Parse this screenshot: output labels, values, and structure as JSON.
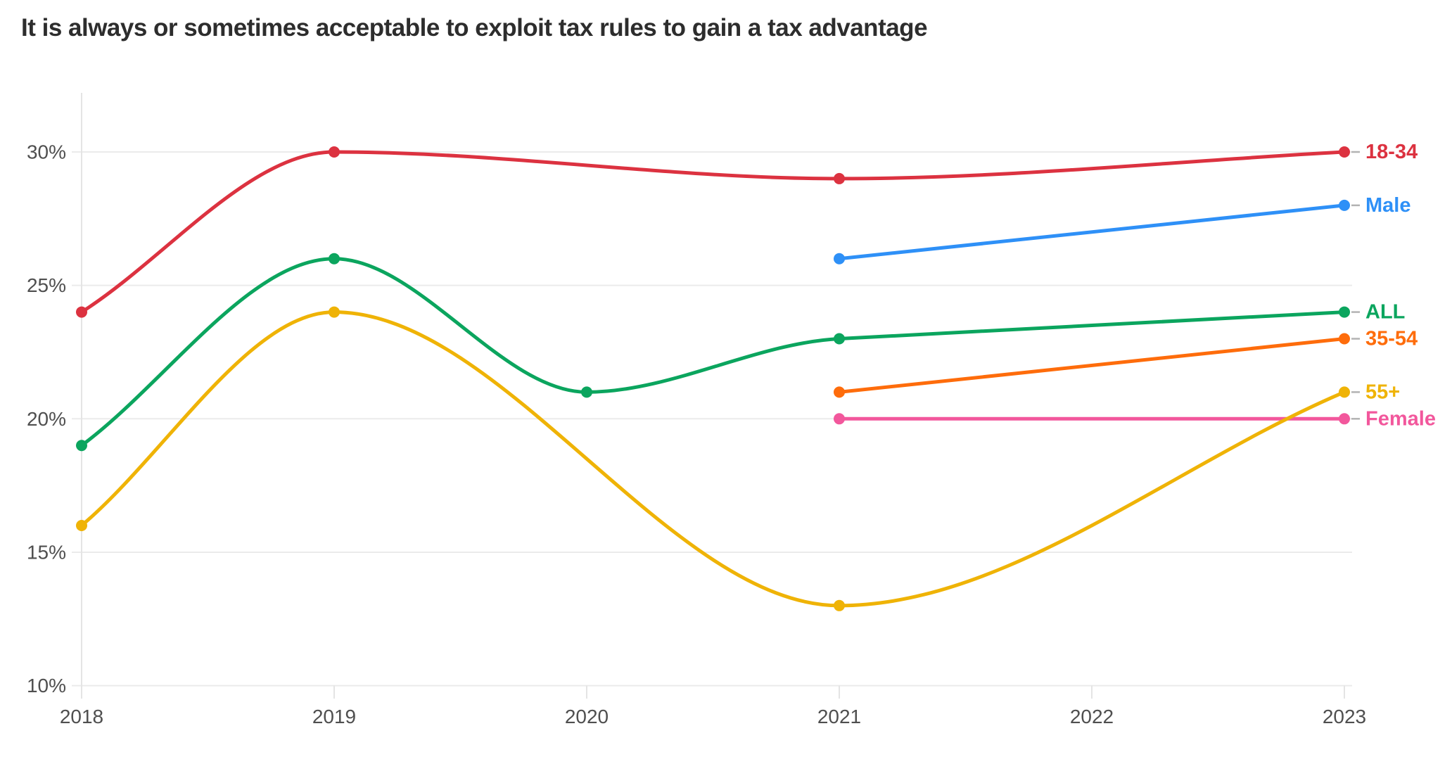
{
  "title": "It is always or sometimes acceptable to exploit tax rules to gain a tax advantage",
  "chart_data": {
    "type": "line",
    "x": [
      2018,
      2019,
      2020,
      2021,
      2022,
      2023
    ],
    "x_tick_labels": [
      "2018",
      "2019",
      "2020",
      "2021",
      "2022",
      "2023"
    ],
    "y_ticks": [
      10,
      15,
      20,
      25,
      30
    ],
    "y_tick_labels": [
      "10%",
      "15%",
      "20%",
      "25%",
      "30%"
    ],
    "ylim": [
      10,
      32.2
    ],
    "xlabel": "",
    "ylabel": "",
    "grid": "horizontal-only",
    "legend_position": "direct-labels-right",
    "curve": "monotone",
    "series": [
      {
        "name": "18-34",
        "color": "#dc3240",
        "points": [
          {
            "x": 2018,
            "y": 24
          },
          {
            "x": 2019,
            "y": 30
          },
          {
            "x": 2021,
            "y": 29
          },
          {
            "x": 2023,
            "y": 30
          }
        ]
      },
      {
        "name": "Male",
        "color": "#2e90f7",
        "points": [
          {
            "x": 2021,
            "y": 26
          },
          {
            "x": 2023,
            "y": 28
          }
        ]
      },
      {
        "name": "ALL",
        "color": "#0ba55e",
        "points": [
          {
            "x": 2018,
            "y": 19
          },
          {
            "x": 2019,
            "y": 26
          },
          {
            "x": 2020,
            "y": 21
          },
          {
            "x": 2021,
            "y": 23
          },
          {
            "x": 2023,
            "y": 24
          }
        ]
      },
      {
        "name": "35-54",
        "color": "#fe6c0b",
        "points": [
          {
            "x": 2021,
            "y": 21
          },
          {
            "x": 2023,
            "y": 23
          }
        ]
      },
      {
        "name": "55+",
        "color": "#efb306",
        "points": [
          {
            "x": 2018,
            "y": 16
          },
          {
            "x": 2019,
            "y": 24
          },
          {
            "x": 2021,
            "y": 13
          },
          {
            "x": 2023,
            "y": 21
          }
        ]
      },
      {
        "name": "Female",
        "color": "#f2579c",
        "points": [
          {
            "x": 2021,
            "y": 20
          },
          {
            "x": 2023,
            "y": 20
          }
        ]
      }
    ]
  },
  "style": {
    "grid_color": "#ebebeb",
    "axis_color": "#e4e4e4",
    "tick_label_color": "#4f4f4f",
    "title_color": "#2d2d2d",
    "connector_color": "#b3b3b3",
    "background": "#ffffff"
  }
}
